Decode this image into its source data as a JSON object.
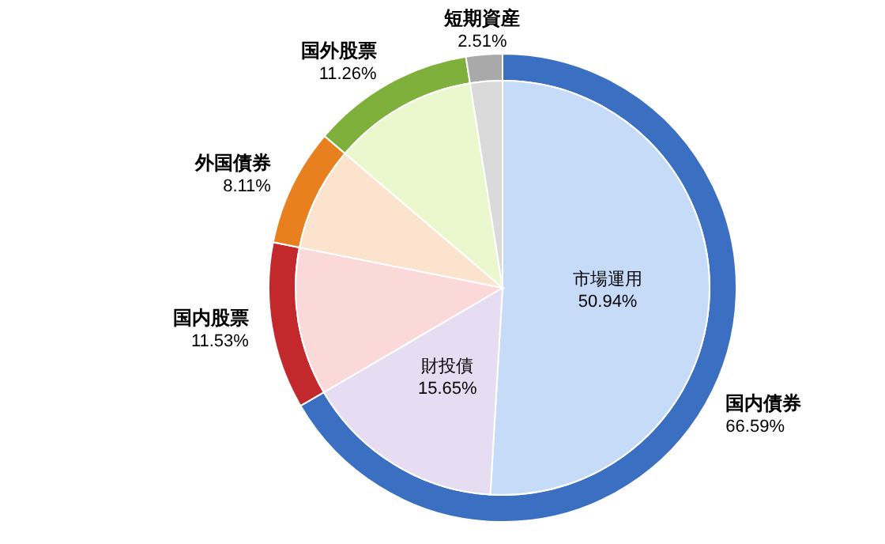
{
  "chart_data": [
    {
      "type": "donut",
      "categories": [
        "国内債券",
        "国内股票",
        "外国債券",
        "国外股票",
        "短期資産"
      ],
      "values": [
        66.59,
        11.53,
        8.11,
        11.26,
        2.51
      ],
      "colors": [
        "#3b6fc2",
        "#c3282d",
        "#e8801f",
        "#80b03c",
        "#a9a9a9"
      ],
      "value_labels": [
        "66.59%",
        "11.53%",
        "8.11%",
        "11.26%",
        "2.51%"
      ]
    },
    {
      "type": "pie",
      "categories": [
        "市場運用",
        "財投債",
        null,
        null,
        null,
        null
      ],
      "values": [
        50.94,
        15.65,
        11.53,
        8.11,
        11.26,
        2.51
      ],
      "colors": [
        "#c6dbf8",
        "#e7ddf3",
        "#fcd9d9",
        "#fbe3cd",
        "#ebf7cc",
        "#dadada"
      ],
      "value_labels": [
        "50.94%",
        "15.65%",
        null,
        null,
        null,
        null
      ]
    }
  ]
}
